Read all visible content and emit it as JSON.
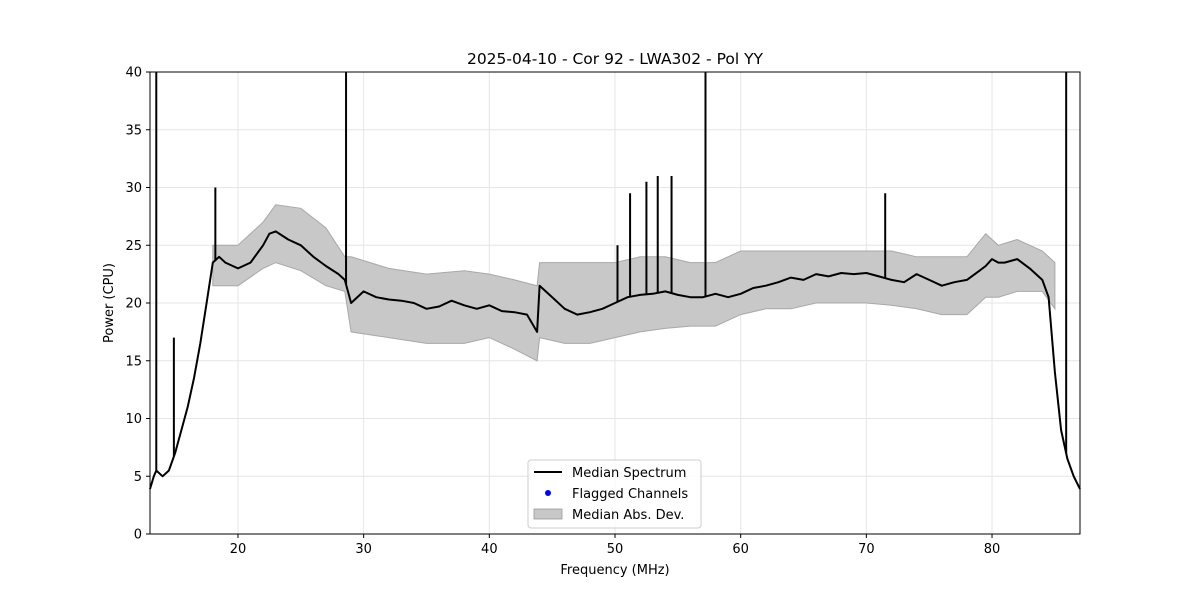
{
  "chart_data": {
    "type": "line",
    "title": "2025-04-10 - Cor 92 - LWA302 - Pol YY",
    "xlabel": "Frequency (MHz)",
    "ylabel": "Power (CPU)",
    "xlim": [
      13,
      87
    ],
    "ylim": [
      0,
      40
    ],
    "xticks": [
      20,
      30,
      40,
      50,
      60,
      70,
      80
    ],
    "yticks": [
      0,
      5,
      10,
      15,
      20,
      25,
      30,
      35,
      40
    ],
    "grid": true,
    "legend_position": "lower-center",
    "legend": [
      {
        "label": "Median Spectrum",
        "kind": "line",
        "color": "#000000"
      },
      {
        "label": "Flagged Channels",
        "kind": "marker",
        "color": "#0000ff"
      },
      {
        "label": "Median Abs. Dev.",
        "kind": "band",
        "color": "#c8c8c8"
      }
    ],
    "series": [
      {
        "name": "Median Spectrum",
        "color": "#000000",
        "x": [
          13.0,
          13.3,
          13.5,
          14.0,
          14.5,
          15.0,
          15.5,
          16.0,
          16.5,
          17.0,
          17.5,
          18.0,
          18.5,
          19.0,
          20.0,
          21.0,
          22.0,
          22.5,
          23.0,
          24.0,
          25.0,
          26.0,
          27.0,
          28.0,
          28.5,
          29.0,
          30.0,
          31.0,
          32.0,
          33.0,
          34.0,
          35.0,
          36.0,
          37.0,
          38.0,
          39.0,
          40.0,
          41.0,
          42.0,
          43.0,
          43.8,
          44.0,
          45.0,
          46.0,
          47.0,
          48.0,
          49.0,
          50.0,
          51.0,
          52.0,
          53.0,
          54.0,
          55.0,
          56.0,
          57.0,
          58.0,
          59.0,
          60.0,
          61.0,
          62.0,
          63.0,
          64.0,
          65.0,
          66.0,
          67.0,
          68.0,
          69.0,
          70.0,
          71.0,
          72.0,
          73.0,
          74.0,
          75.0,
          76.0,
          77.0,
          78.0,
          79.0,
          79.5,
          80.0,
          80.5,
          81.0,
          82.0,
          83.0,
          84.0,
          84.5,
          85.0,
          85.5,
          86.0,
          86.5,
          87.0
        ],
        "values": [
          3.9,
          5.0,
          5.5,
          5.0,
          5.5,
          7.0,
          9.0,
          11.0,
          13.5,
          16.5,
          20.0,
          23.5,
          24.0,
          23.5,
          23.0,
          23.5,
          25.0,
          26.0,
          26.2,
          25.5,
          25.0,
          24.0,
          23.2,
          22.5,
          22.0,
          20.0,
          21.0,
          20.5,
          20.3,
          20.2,
          20.0,
          19.5,
          19.7,
          20.2,
          19.8,
          19.5,
          19.8,
          19.3,
          19.2,
          19.0,
          17.5,
          21.5,
          20.5,
          19.5,
          19.0,
          19.2,
          19.5,
          20.0,
          20.5,
          20.7,
          20.8,
          21.0,
          20.7,
          20.5,
          20.5,
          20.8,
          20.5,
          20.8,
          21.3,
          21.5,
          21.8,
          22.2,
          22.0,
          22.5,
          22.3,
          22.6,
          22.5,
          22.6,
          22.3,
          22.0,
          21.8,
          22.5,
          22.0,
          21.5,
          21.8,
          22.0,
          22.8,
          23.2,
          23.8,
          23.5,
          23.5,
          23.8,
          23.0,
          22.0,
          20.5,
          14.0,
          9.0,
          6.5,
          5.0,
          3.9
        ]
      }
    ],
    "band": {
      "name": "Median Abs. Dev.",
      "color": "#c8c8c8",
      "x": [
        18.0,
        20.0,
        22.0,
        23.0,
        25.0,
        27.0,
        28.5,
        29.0,
        32.0,
        35.0,
        38.0,
        40.0,
        42.0,
        43.8,
        44.0,
        46.0,
        48.0,
        50.0,
        52.0,
        54.0,
        56.0,
        58.0,
        60.0,
        62.0,
        64.0,
        66.0,
        68.0,
        70.0,
        72.0,
        74.0,
        76.0,
        78.0,
        79.5,
        80.5,
        82.0,
        84.0,
        85.0
      ],
      "upper": [
        25.0,
        25.0,
        27.0,
        28.5,
        28.2,
        26.5,
        24.0,
        24.0,
        23.0,
        22.5,
        22.8,
        22.5,
        22.0,
        21.5,
        23.5,
        23.5,
        23.5,
        23.5,
        24.0,
        24.0,
        23.5,
        23.5,
        24.5,
        24.5,
        24.5,
        24.5,
        24.5,
        24.5,
        24.5,
        24.0,
        24.0,
        24.0,
        26.0,
        25.0,
        25.5,
        24.5,
        23.5
      ],
      "lower": [
        21.5,
        21.5,
        23.0,
        23.5,
        22.8,
        21.5,
        21.0,
        17.5,
        17.0,
        16.5,
        16.5,
        17.0,
        16.0,
        15.0,
        17.0,
        16.5,
        16.5,
        17.0,
        17.5,
        17.8,
        18.0,
        18.0,
        19.0,
        19.5,
        19.5,
        20.0,
        20.0,
        20.0,
        19.8,
        19.5,
        19.0,
        19.0,
        20.5,
        20.5,
        21.0,
        21.0,
        19.5
      ]
    },
    "spikes": [
      {
        "x": 13.5,
        "value": 40
      },
      {
        "x": 14.9,
        "value": 17
      },
      {
        "x": 18.2,
        "value": 30
      },
      {
        "x": 28.6,
        "value": 40
      },
      {
        "x": 50.2,
        "value": 25
      },
      {
        "x": 51.2,
        "value": 29.5
      },
      {
        "x": 52.5,
        "value": 30.5
      },
      {
        "x": 53.4,
        "value": 31
      },
      {
        "x": 54.5,
        "value": 31
      },
      {
        "x": 57.2,
        "value": 40
      },
      {
        "x": 71.5,
        "value": 29.5
      },
      {
        "x": 85.9,
        "value": 40
      }
    ]
  }
}
